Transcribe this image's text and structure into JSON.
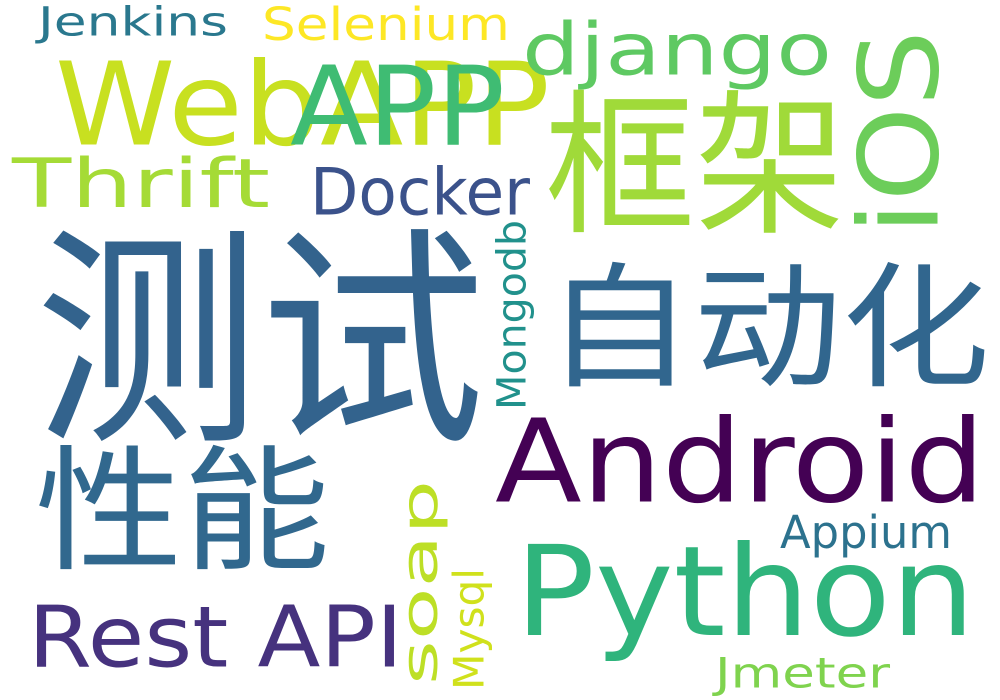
{
  "words": [
    {
      "text": "测试",
      "color": "#33638d"
    },
    {
      "text": "自动化",
      "color": "#31668e"
    },
    {
      "text": "Android",
      "color": "#440154"
    },
    {
      "text": "Python",
      "color": "#2fb47c"
    },
    {
      "text": "框架",
      "color": "#a0da39"
    },
    {
      "text": "WebAPP",
      "color": "#c8e020"
    },
    {
      "text": "APP",
      "color": "#3fbc73"
    },
    {
      "text": "iOS",
      "color": "#6ccd5a"
    },
    {
      "text": "性能",
      "color": "#31688e"
    },
    {
      "text": "django",
      "color": "#5ec962"
    },
    {
      "text": "Rest API",
      "color": "#46327e"
    },
    {
      "text": "Thrift",
      "color": "#a5db36"
    },
    {
      "text": "Docker",
      "color": "#3b528b"
    },
    {
      "text": "Selenium",
      "color": "#fde725"
    },
    {
      "text": "Jenkins",
      "color": "#2a788e"
    },
    {
      "text": "soap",
      "color": "#bddf26"
    },
    {
      "text": "Appium",
      "color": "#2c728e"
    },
    {
      "text": "Mongodb",
      "color": "#21918c"
    },
    {
      "text": "Mysql",
      "color": "#d0e11c"
    },
    {
      "text": "Jmeter",
      "color": "#7fd34e"
    }
  ]
}
